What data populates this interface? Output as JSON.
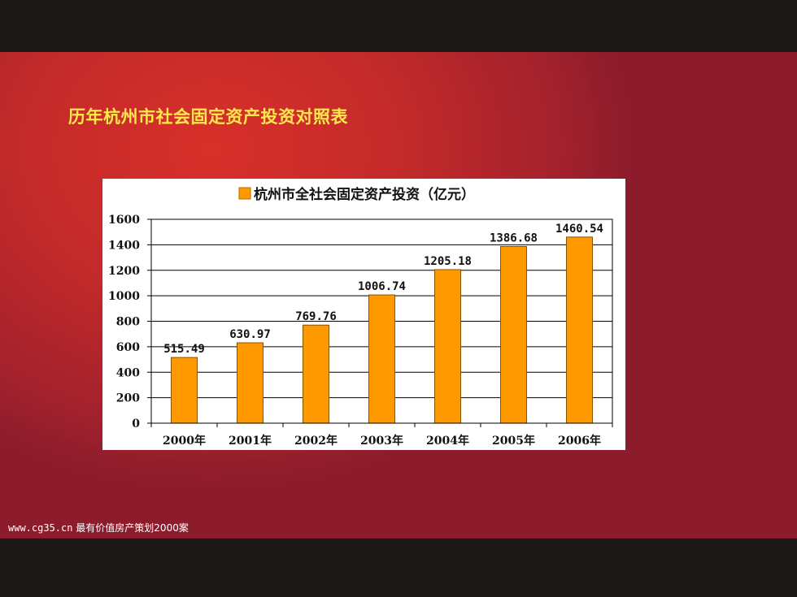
{
  "slide": {
    "title": "历年杭州市社会固定资产投资对照表"
  },
  "footer": {
    "url": "www.cg35.cn",
    "caption": " 最有价值房产策划2000案"
  },
  "chart_data": {
    "type": "bar",
    "title": "",
    "xlabel": "",
    "ylabel": "",
    "categories": [
      "2000年",
      "2001年",
      "2002年",
      "2003年",
      "2004年",
      "2005年",
      "2006年"
    ],
    "series": [
      {
        "name": "杭州市全社会固定资产投资（亿元）",
        "values": [
          515.49,
          630.97,
          769.76,
          1006.74,
          1205.18,
          1386.68,
          1460.54
        ],
        "labels": [
          "515.49",
          "630.97",
          "769.76",
          "1006.74",
          "1205.18",
          "1386.68",
          "1460.54"
        ],
        "color": "#ff9900"
      }
    ],
    "ylim": [
      0,
      1600
    ],
    "yticks": [
      0,
      200,
      400,
      600,
      800,
      1000,
      1200,
      1400,
      1600
    ],
    "grid": true,
    "legend": "top-center"
  }
}
